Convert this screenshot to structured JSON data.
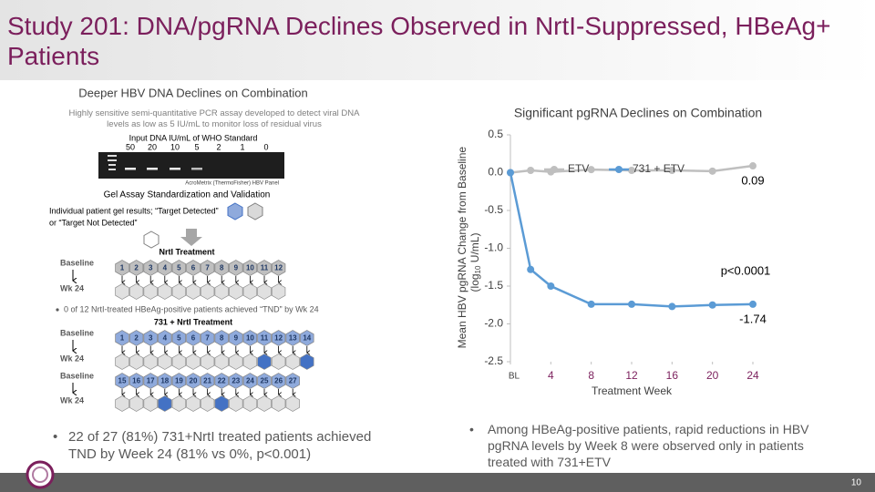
{
  "header": {
    "title": "Study 201: DNA/pgRNA Declines Observed in NrtI-Suppressed, HBeAg+ Patients"
  },
  "left": {
    "heading": "Deeper HBV DNA Declines on Combination",
    "description": "Highly sensitive semi-quantitative PCR assay developed to detect viral DNA levels as low as 5 IU/mL to monitor loss of residual virus",
    "gel_title": "Input DNA IU/mL of WHO Standard",
    "lanes": [
      50,
      20,
      10,
      5,
      2,
      1,
      0
    ],
    "gel_source": "AcroMetrix (ThermoFisher) HBV Panel",
    "gel_caption": "Gel Assay Standardization and Validation",
    "legend_text": [
      "Individual patient gel results; “Target Detected”",
      "or “Target Not Detected”"
    ],
    "nrti": {
      "title": "NrtI Treatment",
      "baseline": "Baseline",
      "week": "Wk 24",
      "numbers": [
        1,
        2,
        3,
        4,
        5,
        6,
        7,
        8,
        9,
        10,
        11,
        12
      ]
    },
    "nrti_bullet": "0 of 12 NrtI-treated HBeAg-positive patients achieved “TND” by Wk 24",
    "combo": {
      "title": "731 + NrtI Treatment",
      "baseline": "Baseline",
      "week": "Wk 24",
      "rows": [
        {
          "numbers": [
            1,
            2,
            3,
            4,
            5,
            6,
            7,
            8,
            9,
            10,
            11,
            12,
            13,
            14
          ]
        },
        {
          "numbers": [
            15,
            16,
            17,
            18,
            19,
            20,
            21,
            22,
            23,
            24,
            25,
            26,
            27
          ]
        }
      ],
      "detected": [
        11,
        14,
        18,
        22
      ]
    },
    "bullet": "22 of 27 (81%) 731+NrtI treated patients achieved TND by Week 24 (81% vs 0%, p<0.001)"
  },
  "chart_data": {
    "type": "line",
    "title": "Significant pgRNA Declines on Combination",
    "x_label": "Treatment Week",
    "y_label": [
      "Mean HBV pgRNA Change from Baseline",
      "(log",
      "10",
      " U/mL)"
    ],
    "x": [
      0,
      2,
      4,
      8,
      12,
      16,
      20,
      24
    ],
    "series": [
      {
        "name": "ETV",
        "color": "#bfbfbf",
        "values": [
          0,
          0.03,
          0.01,
          0.04,
          0.03,
          0.03,
          0.02,
          0.09
        ]
      },
      {
        "name": "731 + ETV",
        "color": "#5b9bd5",
        "values": [
          0,
          -1.28,
          -1.5,
          -1.74,
          -1.74,
          -1.77,
          -1.75,
          -1.74
        ]
      }
    ],
    "xlim": [
      0,
      24
    ],
    "xticks": [
      {
        "value": 0,
        "label": "BL"
      },
      4,
      8,
      12,
      16,
      20,
      24
    ],
    "ylim": [
      -2.5,
      0.5
    ],
    "yticks": [
      0.5,
      {
        "value": 0,
        "label": "0.0"
      },
      -0.5,
      {
        "value": -1,
        "label": "-1.0"
      },
      -1.5,
      {
        "value": -2,
        "label": "-2.0"
      },
      -2.5
    ],
    "annotations": [
      "0.09",
      "p<0.0001",
      "-1.74"
    ]
  },
  "right": {
    "bullet": "Among HBeAg-positive patients, rapid reductions in HBV pgRNA levels by Week 8 were observed only in patients treated with 731+ETV"
  },
  "footer": {
    "page": "10"
  }
}
